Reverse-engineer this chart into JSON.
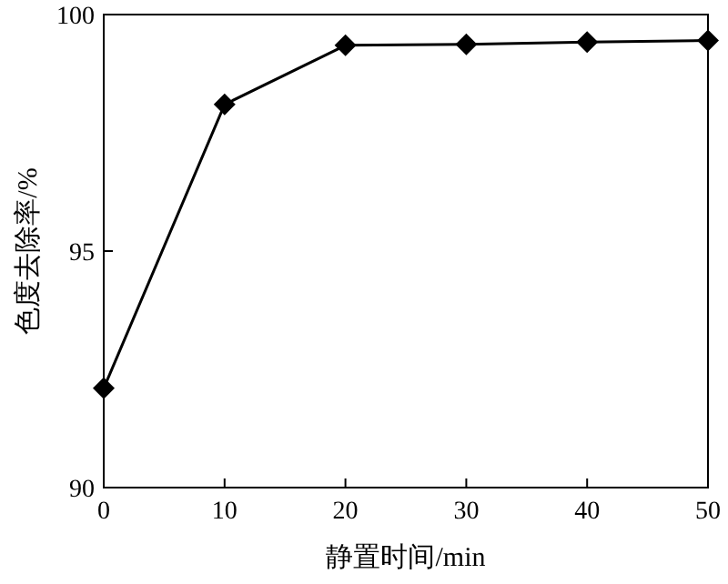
{
  "chart_data": {
    "type": "line",
    "xlabel": "静置时间/min",
    "ylabel": "色度去除率/%",
    "x": [
      0,
      10,
      20,
      30,
      40,
      50
    ],
    "series": [
      {
        "color": "#000000",
        "values": [
          92.1,
          98.1,
          99.35,
          99.37,
          99.42,
          99.45
        ]
      }
    ],
    "xlim": [
      0,
      50
    ],
    "xticks": [
      0,
      10,
      20,
      30,
      40,
      50
    ],
    "ylim": [
      90,
      100
    ],
    "yticks": [
      90,
      95,
      100
    ],
    "marker": "diamond",
    "line_style": "solid"
  }
}
